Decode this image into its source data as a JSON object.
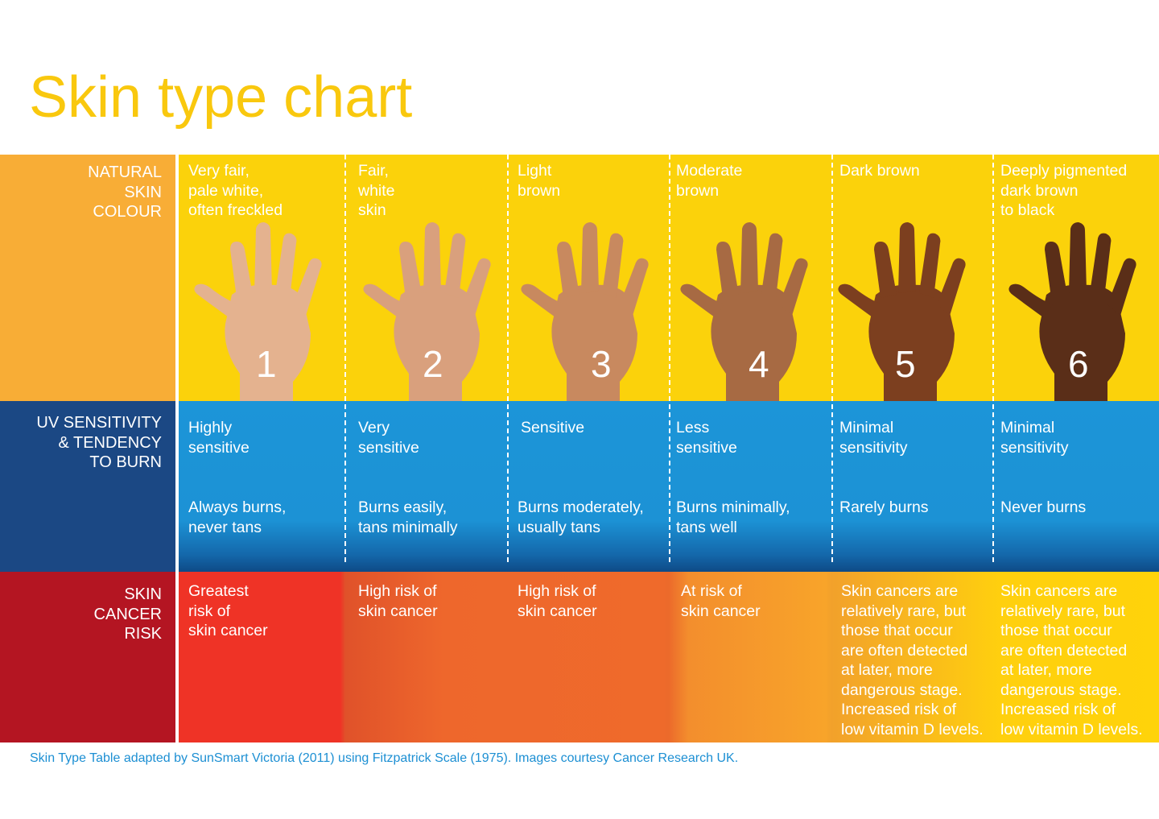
{
  "chart_data": {
    "type": "table",
    "title": "Skin type chart",
    "row_labels": {
      "skin": [
        "NATURAL",
        "SKIN",
        "COLOUR"
      ],
      "uv": [
        "UV SENSITIVITY",
        "& TENDENCY",
        "TO BURN"
      ],
      "risk": [
        "SKIN",
        "CANCER",
        "RISK"
      ]
    },
    "columns": [
      {
        "number": "1",
        "skin_colour": [
          "Very fair,",
          "pale white,",
          "often freckled"
        ],
        "sensitivity": [
          "Highly",
          "sensitive"
        ],
        "burn": [
          "Always burns,",
          "never tans"
        ],
        "risk": [
          "Greatest",
          "risk of",
          "skin cancer"
        ],
        "tone": "#e4b28f"
      },
      {
        "number": "2",
        "skin_colour": [
          "Fair,",
          "white",
          "skin"
        ],
        "sensitivity": [
          "Very",
          "sensitive"
        ],
        "burn": [
          "Burns easily,",
          "tans minimally"
        ],
        "risk": [
          "High risk of",
          "skin cancer"
        ],
        "tone": "#d9a07d"
      },
      {
        "number": "3",
        "skin_colour": [
          "Light",
          "brown"
        ],
        "sensitivity": [
          "Sensitive"
        ],
        "burn": [
          "Burns moderately,",
          "usually tans"
        ],
        "risk": [
          "High risk of",
          "skin cancer"
        ],
        "tone": "#c8895f"
      },
      {
        "number": "4",
        "skin_colour": [
          "Moderate",
          "brown"
        ],
        "sensitivity": [
          "Less",
          "sensitive"
        ],
        "burn": [
          "Burns minimally,",
          "tans well"
        ],
        "risk": [
          "At risk of",
          "skin cancer"
        ],
        "tone": "#a76a43"
      },
      {
        "number": "5",
        "skin_colour": [
          "Dark brown"
        ],
        "sensitivity": [
          "Minimal",
          "sensitivity"
        ],
        "burn": [
          "Rarely burns"
        ],
        "risk": [
          "Skin cancers are",
          "relatively rare, but",
          "those that occur",
          "are often detected",
          "at later, more",
          "dangerous stage.",
          "Increased risk of",
          "low vitamin D levels."
        ],
        "tone": "#7c3f1f"
      },
      {
        "number": "6",
        "skin_colour": [
          "Deeply pigmented",
          "dark brown",
          "to black"
        ],
        "sensitivity": [
          "Minimal",
          "sensitivity"
        ],
        "burn": [
          "Never burns"
        ],
        "risk": [
          "Skin cancers are",
          "relatively rare, but",
          "those that occur",
          "are often detected",
          "at later, more",
          "dangerous stage.",
          "Increased risk of",
          "low vitamin D levels."
        ],
        "tone": "#5a2e18"
      }
    ]
  },
  "footer": "Skin Type Table adapted by SunSmart Victoria (2011) using Fitzpatrick Scale (1975). Images courtesy Cancer Research UK.",
  "colors": {
    "title": "#f9c80e",
    "skin_band": "#fbd20b",
    "uv_band": "#1c95d8",
    "risk_start": "#ef3326",
    "risk_end": "#ffd30a",
    "label_skin": "#f8ad36",
    "label_uv": "#1b4884",
    "label_risk": "#b41522",
    "footer": "#1c8fd3"
  }
}
